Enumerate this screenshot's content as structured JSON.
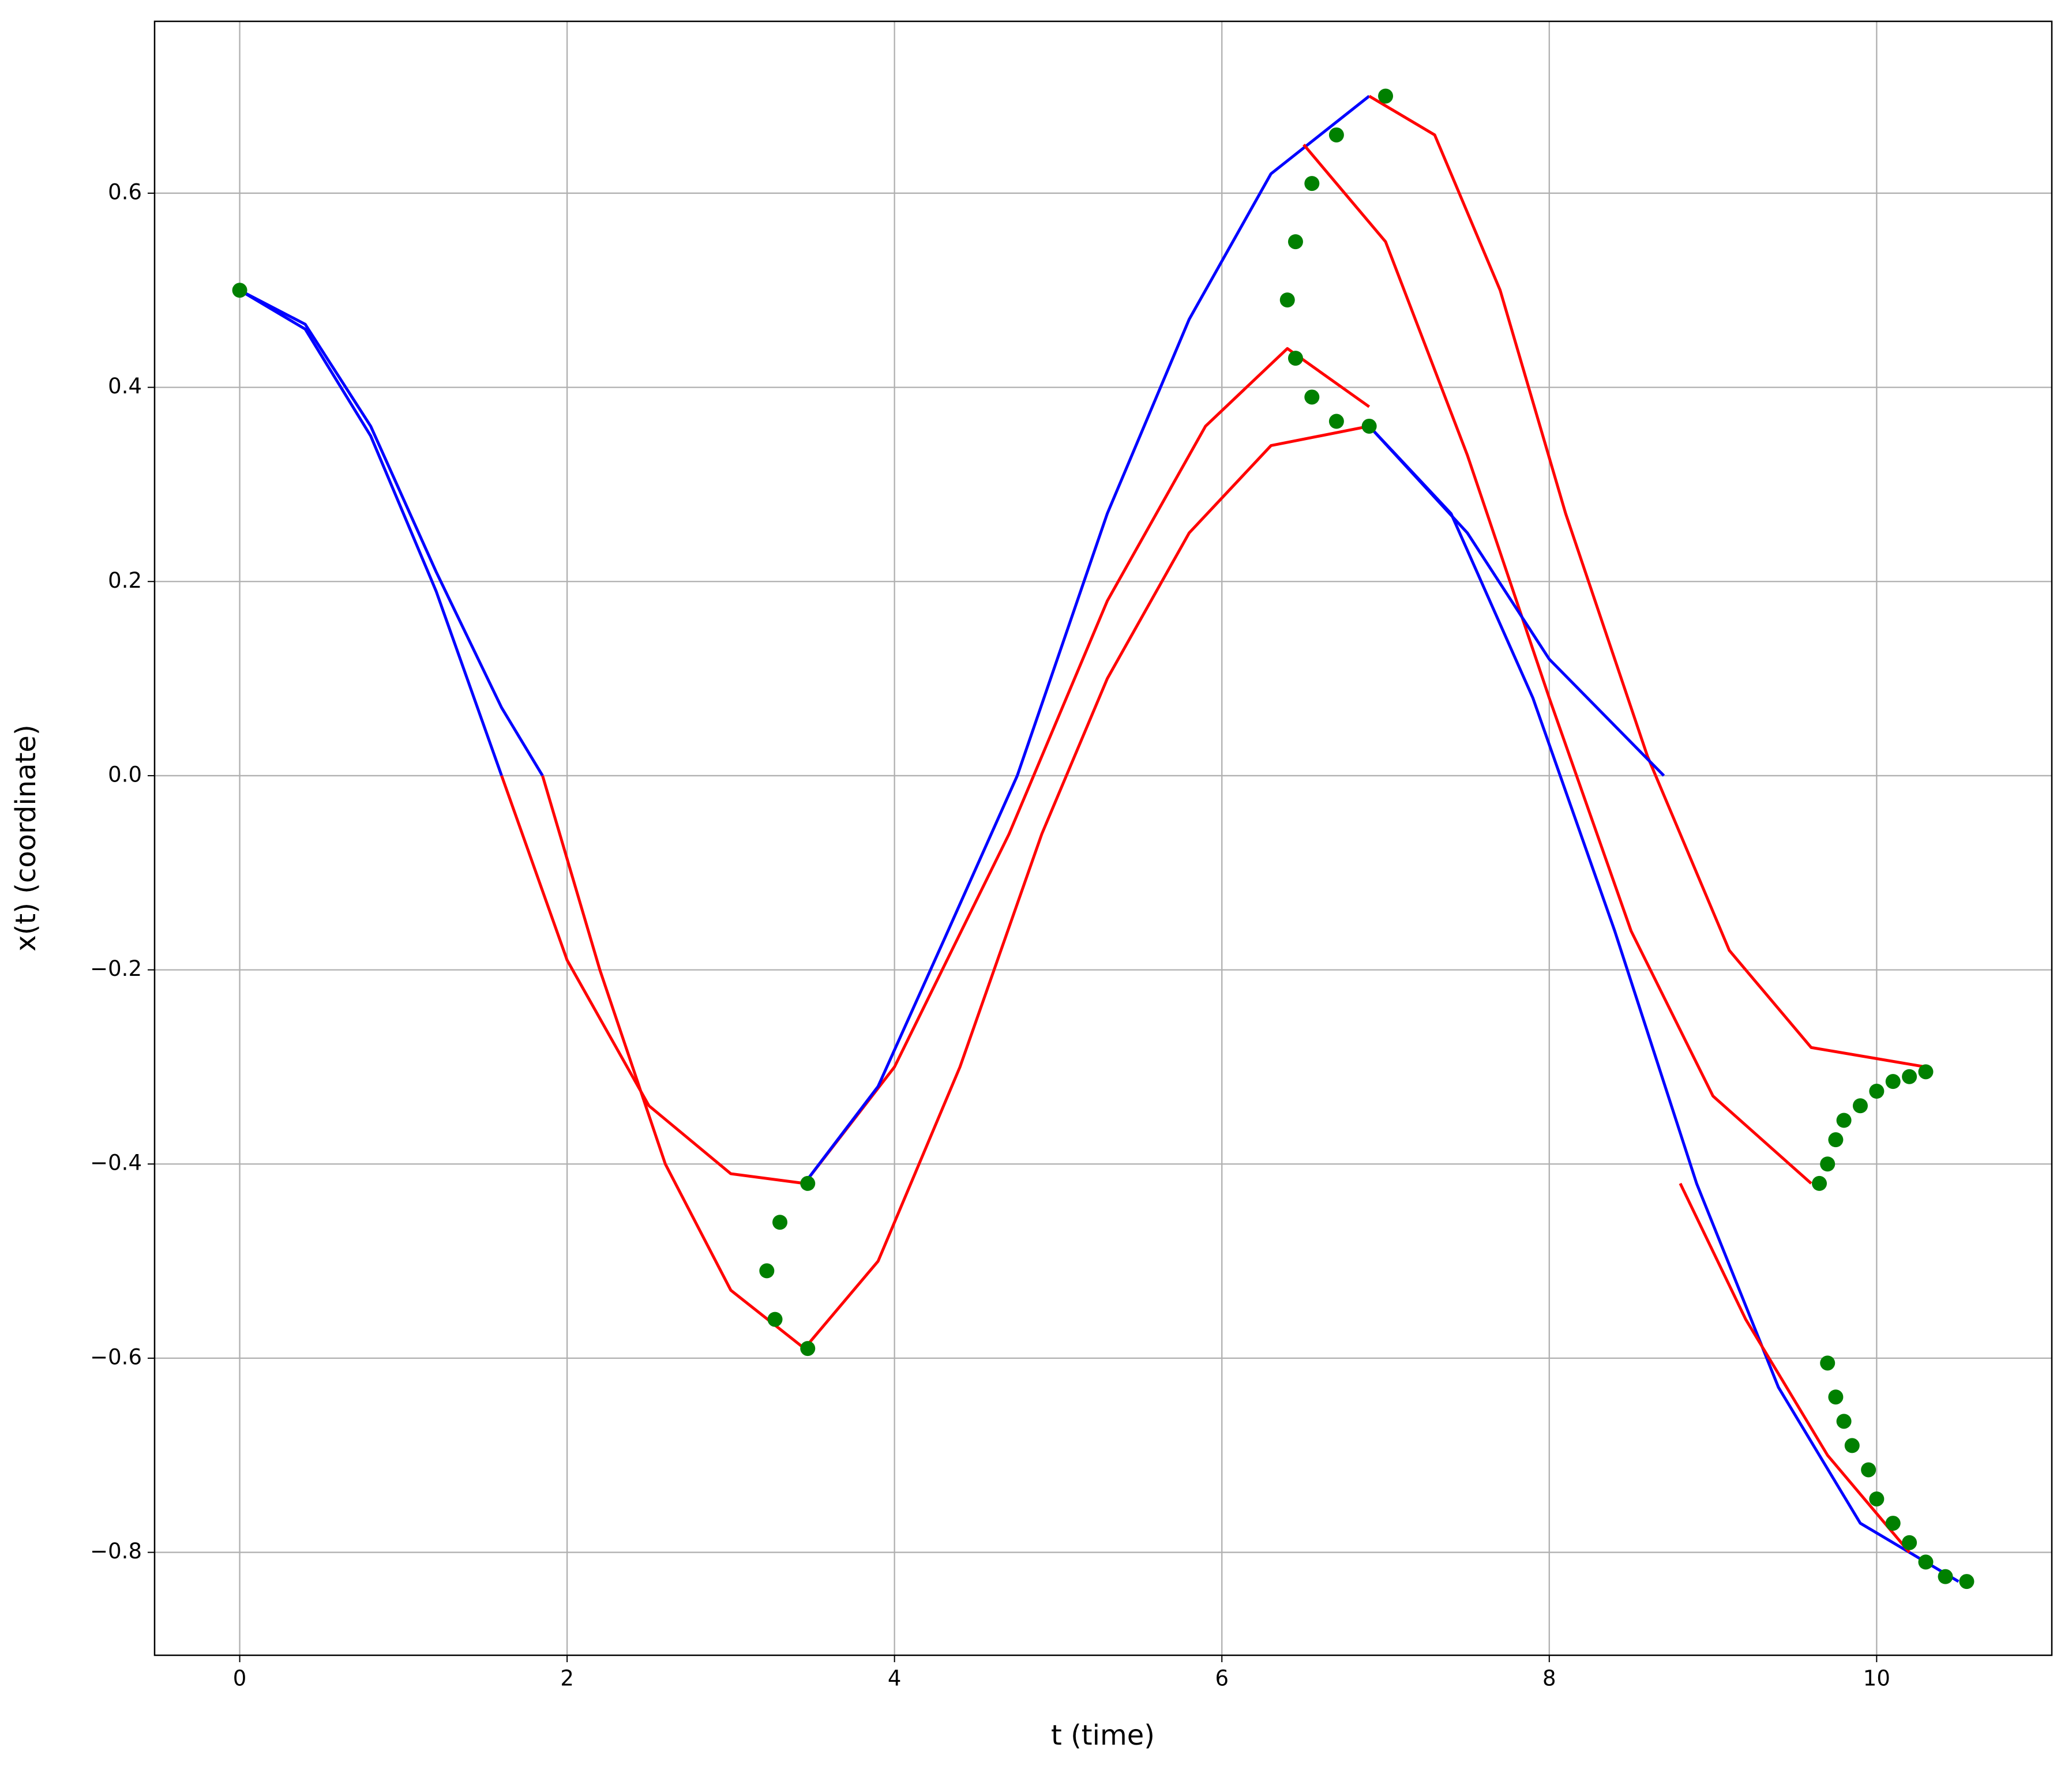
{
  "chart_data": {
    "type": "line",
    "xlabel": "t (time)",
    "ylabel": "x(t) (coordinate)",
    "xlim": [
      -0.52,
      11.07
    ],
    "ylim": [
      -0.906,
      0.777
    ],
    "xticks": [
      0,
      2,
      4,
      6,
      8,
      10
    ],
    "yticks": [
      {
        "value": -0.8,
        "label": "−0.8"
      },
      {
        "value": -0.6,
        "label": "−0.6"
      },
      {
        "value": -0.4,
        "label": "−0.4"
      },
      {
        "value": -0.2,
        "label": "−0.2"
      },
      {
        "value": 0,
        "label": "0.0"
      },
      0.2,
      0.4,
      0.6
    ],
    "grid": true,
    "series": [
      {
        "color": "#0000ff",
        "x": [
          0,
          0.4,
          0.8,
          1.2,
          1.6
        ],
        "values": [
          0.5,
          0.46,
          0.35,
          0.19,
          0.0
        ]
      },
      {
        "color": "#0000ff",
        "x": [
          0,
          0.4,
          0.8,
          1.2,
          1.6,
          1.85
        ],
        "values": [
          0.5,
          0.465,
          0.36,
          0.21,
          0.07,
          0.0
        ]
      },
      {
        "color": "#ff0000",
        "x": [
          1.6,
          2.0,
          2.5,
          3.0,
          3.45
        ],
        "values": [
          0.0,
          -0.19,
          -0.34,
          -0.41,
          -0.42
        ]
      },
      {
        "color": "#ff0000",
        "x": [
          1.85,
          2.2,
          2.6,
          3.0,
          3.45
        ],
        "values": [
          0.0,
          -0.2,
          -0.4,
          -0.53,
          -0.59
        ]
      },
      {
        "color": "#ff0000",
        "x": [
          3.45,
          4.0,
          4.7,
          5.3,
          5.9,
          6.4,
          6.9
        ],
        "values": [
          -0.42,
          -0.3,
          -0.06,
          0.18,
          0.36,
          0.44,
          0.38
        ]
      },
      {
        "color": "#ff0000",
        "x": [
          3.45,
          3.9,
          4.4,
          4.9,
          5.3,
          5.8,
          6.3,
          6.9
        ],
        "values": [
          -0.59,
          -0.5,
          -0.3,
          -0.06,
          0.1,
          0.25,
          0.34,
          0.36
        ]
      },
      {
        "color": "#0000ff",
        "x": [
          3.45,
          3.9,
          4.3,
          4.75,
          5.3,
          5.8,
          6.3,
          6.9
        ],
        "values": [
          -0.42,
          -0.32,
          -0.17,
          0.0,
          0.27,
          0.47,
          0.62,
          0.7
        ]
      },
      {
        "color": "#ff0000",
        "x": [
          6.9,
          7.3,
          7.7,
          8.1,
          8.6,
          9.1,
          9.6,
          10.3
        ],
        "values": [
          0.7,
          0.66,
          0.5,
          0.27,
          0.02,
          -0.18,
          -0.28,
          -0.3
        ]
      },
      {
        "color": "#ff0000",
        "x": [
          6.5,
          7.0,
          7.5,
          8.0,
          8.5,
          9.0,
          9.6
        ],
        "values": [
          0.65,
          0.55,
          0.33,
          0.08,
          -0.16,
          -0.33,
          -0.42
        ]
      },
      {
        "color": "#0000ff",
        "x": [
          6.9,
          7.5,
          8.0,
          8.7
        ],
        "values": [
          0.36,
          0.25,
          0.12,
          0.0
        ]
      },
      {
        "color": "#0000ff",
        "x": [
          6.9,
          7.4,
          7.9,
          8.4,
          8.9,
          9.4,
          9.9,
          10.5
        ],
        "values": [
          0.36,
          0.27,
          0.08,
          -0.16,
          -0.42,
          -0.63,
          -0.77,
          -0.83
        ]
      },
      {
        "color": "#ff0000",
        "x": [
          8.8,
          9.2,
          9.7,
          10.2
        ],
        "values": [
          -0.42,
          -0.56,
          -0.7,
          -0.8
        ]
      }
    ],
    "markers": {
      "color": "#008000",
      "x": [
        0,
        3.47,
        3.3,
        3.22,
        3.27,
        3.47,
        7.0,
        6.7,
        6.55,
        6.45,
        6.4,
        6.45,
        6.55,
        6.7,
        6.9,
        9.65,
        9.7,
        9.75,
        9.8,
        9.9,
        10.0,
        10.1,
        10.2,
        10.3,
        9.7,
        9.75,
        9.8,
        9.85,
        9.95,
        10.0,
        10.1,
        10.2,
        10.3,
        10.42,
        10.55
      ],
      "y": [
        0.5,
        -0.42,
        -0.46,
        -0.51,
        -0.56,
        -0.59,
        0.7,
        0.66,
        0.61,
        0.55,
        0.49,
        0.43,
        0.39,
        0.365,
        0.36,
        -0.42,
        -0.4,
        -0.375,
        -0.355,
        -0.34,
        -0.325,
        -0.315,
        -0.31,
        -0.305,
        -0.605,
        -0.64,
        -0.665,
        -0.69,
        -0.715,
        -0.745,
        -0.77,
        -0.79,
        -0.81,
        -0.825,
        -0.83
      ]
    }
  }
}
